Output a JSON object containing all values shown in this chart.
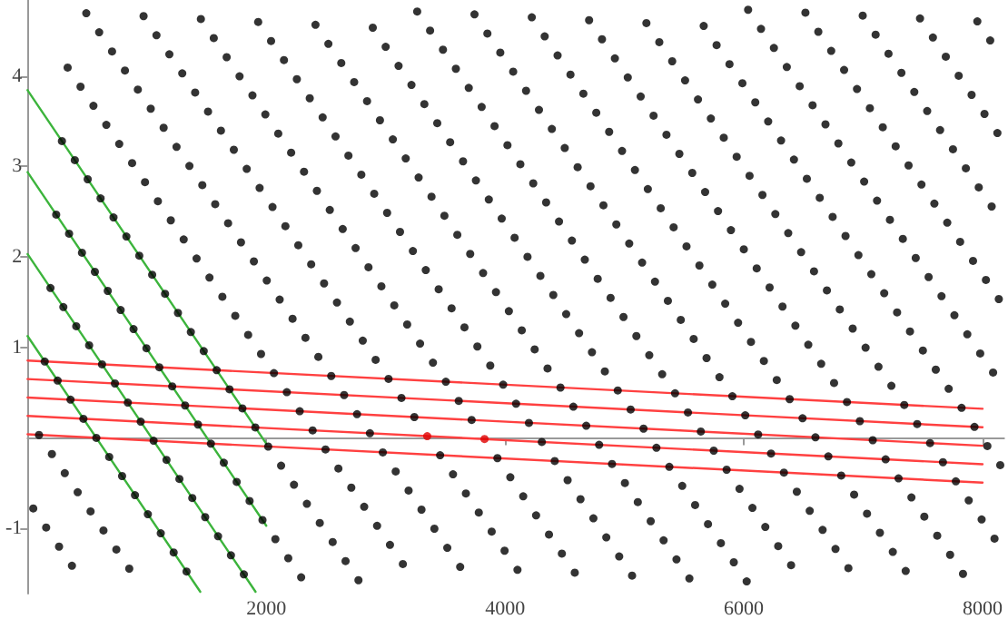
{
  "chart_data": {
    "type": "scatter",
    "xlim": [
      0,
      8180
    ],
    "ylim": [
      -1.72,
      4.84
    ],
    "xticks": [
      2000,
      4000,
      6000,
      8000
    ],
    "yticks": [
      -1,
      1,
      2,
      3,
      4
    ],
    "marker": "circle",
    "series": [
      {
        "type": "line",
        "marker": "none",
        "color": "#3cb43c",
        "x": [
          0,
          2000
        ],
        "values": [
          3.844,
          -0.064
        ]
      },
      {
        "type": "line",
        "marker": "none",
        "color": "#3cb43c",
        "x": [
          0,
          2000
        ],
        "values": [
          2.938,
          -0.97
        ]
      },
      {
        "type": "line",
        "marker": "none",
        "color": "#3cb43c",
        "x": [
          0,
          1910
        ],
        "values": [
          2.032,
          -1.7
        ]
      },
      {
        "type": "line",
        "marker": "none",
        "color": "#3cb43c",
        "x": [
          0,
          1447
        ],
        "values": [
          1.126,
          -1.7
        ]
      },
      {
        "type": "line",
        "marker": "none",
        "color": "#ff4040",
        "x": [
          0,
          8000
        ],
        "values": [
          0.855,
          0.322
        ]
      },
      {
        "type": "line",
        "marker": "none",
        "color": "#ff4040",
        "x": [
          0,
          8000
        ],
        "values": [
          0.651,
          0.118
        ]
      },
      {
        "type": "line",
        "marker": "none",
        "color": "#ff4040",
        "x": [
          0,
          8000
        ],
        "values": [
          0.447,
          -0.086
        ]
      },
      {
        "type": "line",
        "marker": "none",
        "color": "#ff4040",
        "x": [
          0,
          8000
        ],
        "values": [
          0.243,
          -0.29
        ]
      },
      {
        "type": "line",
        "marker": "none",
        "color": "#ff4040",
        "x": [
          0,
          8000
        ],
        "values": [
          0.04,
          -0.494
        ]
      },
      {
        "color": "#000000",
        "x": [
          6036,
          6516,
          6996,
          7476,
          7956
        ],
        "values": [
          4.732,
          4.7,
          4.668,
          4.636,
          4.604
        ]
      },
      {
        "color": "#000000",
        "x": [
          3264,
          3744,
          4224,
          4704,
          5184,
          5664,
          6144,
          6624,
          7104,
          7584,
          8064
        ],
        "values": [
          4.713,
          4.681,
          4.649,
          4.617,
          4.585,
          4.553,
          4.521,
          4.489,
          4.457,
          4.425,
          4.393
        ]
      },
      {
        "color": "#000000",
        "x": [
          492,
          972,
          1452,
          1932,
          2412,
          2892,
          3372,
          3852,
          4332,
          4812,
          5292,
          5772,
          6252,
          6732,
          7212,
          7692
        ],
        "values": [
          4.694,
          4.662,
          4.63,
          4.598,
          4.566,
          4.534,
          4.502,
          4.47,
          4.438,
          4.406,
          4.374,
          4.342,
          4.31,
          4.278,
          4.246,
          4.214
        ]
      },
      {
        "color": "#000000",
        "x": [
          600,
          1080,
          1560,
          2040,
          2520,
          3000,
          3480,
          3960,
          4440,
          4920,
          5400,
          5880,
          6360,
          6840,
          7320,
          7800
        ],
        "values": [
          4.483,
          4.451,
          4.419,
          4.387,
          4.355,
          4.323,
          4.291,
          4.259,
          4.227,
          4.195,
          4.163,
          4.131,
          4.099,
          4.067,
          4.035,
          4.003
        ]
      },
      {
        "color": "#000000",
        "x": [
          708,
          1188,
          1668,
          2148,
          2628,
          3108,
          3588,
          4068,
          4548,
          5028,
          5508,
          5988,
          6468,
          6948,
          7428,
          7908
        ],
        "values": [
          4.272,
          4.24,
          4.208,
          4.176,
          4.144,
          4.112,
          4.08,
          4.048,
          4.016,
          3.984,
          3.952,
          3.92,
          3.888,
          3.856,
          3.824,
          3.792
        ]
      },
      {
        "color": "#000000",
        "x": [
          336,
          816,
          1296,
          1776,
          2256,
          2736,
          3216,
          3696,
          4176,
          4656,
          5136,
          5616,
          6096,
          6576,
          7056,
          7536,
          8016
        ],
        "values": [
          4.093,
          4.061,
          4.029,
          3.997,
          3.965,
          3.933,
          3.901,
          3.869,
          3.837,
          3.805,
          3.773,
          3.741,
          3.709,
          3.677,
          3.645,
          3.613,
          3.581
        ]
      },
      {
        "color": "#000000",
        "x": [
          444,
          924,
          1404,
          1884,
          2364,
          2844,
          3324,
          3804,
          4284,
          4764,
          5244,
          5724,
          6204,
          6684,
          7164,
          7644,
          8124
        ],
        "values": [
          3.882,
          3.85,
          3.818,
          3.786,
          3.754,
          3.722,
          3.69,
          3.658,
          3.626,
          3.594,
          3.562,
          3.53,
          3.498,
          3.466,
          3.434,
          3.402,
          3.37
        ]
      },
      {
        "color": "#000000",
        "x": [
          552,
          1032,
          1512,
          1992,
          2472,
          2952,
          3432,
          3912,
          4392,
          4872,
          5352,
          5832,
          6312,
          6792,
          7272,
          7752
        ],
        "values": [
          3.671,
          3.639,
          3.607,
          3.575,
          3.543,
          3.511,
          3.479,
          3.447,
          3.415,
          3.383,
          3.351,
          3.319,
          3.287,
          3.255,
          3.223,
          3.191
        ]
      },
      {
        "color": "#000000",
        "x": [
          660,
          1140,
          1620,
          2100,
          2580,
          3060,
          3540,
          4020,
          4500,
          4980,
          5460,
          5940,
          6420,
          6900,
          7380,
          7860
        ],
        "values": [
          3.46,
          3.428,
          3.396,
          3.364,
          3.332,
          3.3,
          3.268,
          3.236,
          3.204,
          3.172,
          3.14,
          3.108,
          3.076,
          3.044,
          3.012,
          2.98
        ]
      },
      {
        "color": "#000000",
        "x": [
          288,
          768,
          1248,
          1728,
          2208,
          2688,
          3168,
          3648,
          4128,
          4608,
          5088,
          5568,
          6048,
          6528,
          7008,
          7488,
          7968
        ],
        "values": [
          3.281,
          3.249,
          3.217,
          3.185,
          3.153,
          3.121,
          3.089,
          3.057,
          3.025,
          2.993,
          2.961,
          2.929,
          2.897,
          2.865,
          2.833,
          2.801,
          2.769
        ]
      },
      {
        "color": "#000000",
        "x": [
          396,
          876,
          1356,
          1836,
          2316,
          2796,
          3276,
          3756,
          4236,
          4716,
          5196,
          5676,
          6156,
          6636,
          7116,
          7596,
          8076
        ],
        "values": [
          3.07,
          3.038,
          3.006,
          2.974,
          2.942,
          2.91,
          2.878,
          2.846,
          2.814,
          2.782,
          2.75,
          2.718,
          2.686,
          2.654,
          2.622,
          2.59,
          2.558
        ]
      },
      {
        "color": "#000000",
        "x": [
          504,
          984,
          1464,
          1944,
          2424,
          2904,
          3384,
          3864,
          4344,
          4824,
          5304,
          5784,
          6264,
          6744,
          7224,
          7704
        ],
        "values": [
          2.859,
          2.827,
          2.795,
          2.763,
          2.731,
          2.699,
          2.667,
          2.635,
          2.603,
          2.571,
          2.539,
          2.507,
          2.475,
          2.443,
          2.411,
          2.379
        ]
      },
      {
        "color": "#000000",
        "x": [
          612,
          1092,
          1572,
          2052,
          2532,
          3012,
          3492,
          3972,
          4452,
          4932,
          5412,
          5892,
          6372,
          6852,
          7332,
          7812
        ],
        "values": [
          2.648,
          2.616,
          2.584,
          2.552,
          2.52,
          2.488,
          2.456,
          2.424,
          2.392,
          2.36,
          2.328,
          2.296,
          2.264,
          2.232,
          2.2,
          2.168
        ]
      },
      {
        "color": "#000000",
        "x": [
          240,
          720,
          1200,
          1680,
          2160,
          2640,
          3120,
          3600,
          4080,
          4560,
          5040,
          5520,
          6000,
          6480,
          6960,
          7440,
          7920
        ],
        "values": [
          2.469,
          2.437,
          2.405,
          2.373,
          2.341,
          2.309,
          2.277,
          2.245,
          2.213,
          2.181,
          2.149,
          2.117,
          2.085,
          2.053,
          2.021,
          1.989,
          1.957
        ]
      },
      {
        "color": "#000000",
        "x": [
          348,
          828,
          1308,
          1788,
          2268,
          2748,
          3228,
          3708,
          4188,
          4668,
          5148,
          5628,
          6108,
          6588,
          7068,
          7548,
          8028
        ],
        "values": [
          2.258,
          2.226,
          2.194,
          2.162,
          2.13,
          2.098,
          2.066,
          2.034,
          2.002,
          1.97,
          1.938,
          1.906,
          1.874,
          1.842,
          1.81,
          1.778,
          1.746
        ]
      },
      {
        "color": "#000000",
        "x": [
          456,
          936,
          1416,
          1896,
          2376,
          2856,
          3336,
          3816,
          4296,
          4776,
          5256,
          5736,
          6216,
          6696,
          7176,
          7656,
          8136
        ],
        "values": [
          2.047,
          2.015,
          1.983,
          1.951,
          1.919,
          1.887,
          1.855,
          1.823,
          1.791,
          1.759,
          1.727,
          1.695,
          1.663,
          1.631,
          1.599,
          1.567,
          1.535
        ]
      },
      {
        "color": "#000000",
        "x": [
          564,
          1044,
          1524,
          2004,
          2484,
          2964,
          3444,
          3924,
          4404,
          4884,
          5364,
          5844,
          6324,
          6804,
          7284,
          7764
        ],
        "values": [
          1.836,
          1.804,
          1.772,
          1.74,
          1.708,
          1.676,
          1.644,
          1.612,
          1.58,
          1.548,
          1.516,
          1.484,
          1.452,
          1.42,
          1.388,
          1.356
        ]
      },
      {
        "color": "#000000",
        "x": [
          192,
          672,
          1152,
          1632,
          2112,
          2592,
          3072,
          3552,
          4032,
          4512,
          4992,
          5472,
          5952,
          6432,
          6912,
          7392,
          7872
        ],
        "values": [
          1.657,
          1.625,
          1.593,
          1.561,
          1.529,
          1.497,
          1.465,
          1.433,
          1.401,
          1.369,
          1.337,
          1.305,
          1.273,
          1.241,
          1.209,
          1.177,
          1.145
        ]
      },
      {
        "color": "#000000",
        "x": [
          300,
          780,
          1260,
          1740,
          2220,
          2700,
          3180,
          3660,
          4140,
          4620,
          5100,
          5580,
          6060,
          6540,
          7020,
          7500,
          7980
        ],
        "values": [
          1.446,
          1.414,
          1.382,
          1.35,
          1.318,
          1.286,
          1.254,
          1.222,
          1.19,
          1.158,
          1.126,
          1.094,
          1.062,
          1.03,
          0.998,
          0.966,
          0.934
        ]
      },
      {
        "color": "#000000",
        "x": [
          408,
          888,
          1368,
          1848,
          2328,
          2808,
          3288,
          3768,
          4248,
          4728,
          5208,
          5688,
          6168,
          6648,
          7128,
          7608,
          8088
        ],
        "values": [
          1.235,
          1.203,
          1.171,
          1.139,
          1.107,
          1.075,
          1.043,
          1.011,
          0.979,
          0.947,
          0.915,
          0.883,
          0.851,
          0.819,
          0.787,
          0.755,
          0.723
        ]
      },
      {
        "color": "#000000",
        "x": [
          516,
          996,
          1476,
          1956,
          2436,
          2916,
          3396,
          3876,
          4356,
          4836,
          5316,
          5796,
          6276,
          6756,
          7236,
          7716
        ],
        "values": [
          1.024,
          0.992,
          0.96,
          0.928,
          0.896,
          0.864,
          0.832,
          0.8,
          0.768,
          0.736,
          0.704,
          0.672,
          0.64,
          0.608,
          0.576,
          0.544
        ]
      },
      {
        "color": "#000000",
        "x": [
          144,
          624,
          1104,
          1584,
          2064,
          2544,
          3024,
          3504,
          3984,
          4464,
          4944,
          5424,
          5904,
          6384,
          6864,
          7344,
          7824
        ],
        "values": [
          0.845,
          0.813,
          0.781,
          0.749,
          0.717,
          0.685,
          0.653,
          0.621,
          0.589,
          0.557,
          0.525,
          0.493,
          0.461,
          0.429,
          0.397,
          0.365,
          0.333
        ]
      },
      {
        "color": "#000000",
        "x": [
          252,
          732,
          1212,
          1692,
          2172,
          2652,
          3132,
          3612,
          4092,
          4572,
          5052,
          5532,
          6012,
          6492,
          6972,
          7452,
          7932
        ],
        "values": [
          0.634,
          0.602,
          0.57,
          0.538,
          0.506,
          0.474,
          0.442,
          0.41,
          0.378,
          0.346,
          0.314,
          0.282,
          0.25,
          0.218,
          0.186,
          0.154,
          0.122
        ]
      },
      {
        "color": "#000000",
        "x": [
          360,
          840,
          1320,
          1800,
          2280,
          2760,
          3240,
          3720,
          4200,
          4680,
          5160,
          5640,
          6120,
          6600,
          7080,
          7560,
          8040
        ],
        "values": [
          0.423,
          0.391,
          0.359,
          0.327,
          0.295,
          0.263,
          0.231,
          0.199,
          0.167,
          0.135,
          0.103,
          0.071,
          0.039,
          0.007,
          -0.025,
          -0.057,
          -0.089
        ]
      },
      {
        "color": "#000000",
        "x": [
          468,
          948,
          1428,
          1908,
          2388,
          2868,
          3348,
          3828,
          4308,
          4788,
          5268,
          5748,
          6228,
          6708,
          7188,
          7668,
          8148
        ],
        "values": [
          0.212,
          0.18,
          0.148,
          0.116,
          0.084,
          0.052,
          null,
          null,
          -0.044,
          -0.076,
          -0.108,
          -0.14,
          -0.172,
          -0.204,
          -0.236,
          -0.268,
          -0.3
        ]
      },
      {
        "color": "#000000",
        "x": [
          96,
          576,
          1056,
          1536,
          2016,
          2496,
          2976,
          3456,
          3936,
          4416,
          4896,
          5376,
          5856,
          6336,
          6816,
          7296,
          7776
        ],
        "values": [
          0.033,
          0.001,
          -0.031,
          -0.063,
          -0.095,
          -0.127,
          -0.159,
          -0.191,
          -0.223,
          -0.255,
          -0.287,
          -0.319,
          -0.351,
          -0.383,
          -0.415,
          -0.447,
          -0.479
        ]
      },
      {
        "color": "#000000",
        "x": [
          204,
          684,
          1164,
          1644,
          2124,
          2604,
          3084,
          3564,
          4044,
          4524,
          5004,
          5484,
          5964,
          6444,
          6924,
          7404,
          7884
        ],
        "values": [
          -0.178,
          -0.21,
          -0.242,
          -0.274,
          -0.306,
          -0.338,
          -0.37,
          -0.402,
          -0.434,
          -0.466,
          -0.498,
          -0.53,
          -0.562,
          -0.594,
          -0.626,
          -0.658,
          -0.69
        ]
      },
      {
        "color": "#000000",
        "x": [
          312,
          792,
          1272,
          1752,
          2232,
          2712,
          3192,
          3672,
          4152,
          4632,
          5112,
          5592,
          6072,
          6552,
          7032,
          7512,
          7992
        ],
        "values": [
          -0.389,
          -0.421,
          -0.453,
          -0.485,
          -0.517,
          -0.549,
          -0.581,
          -0.613,
          -0.645,
          -0.677,
          -0.709,
          -0.741,
          -0.773,
          -0.805,
          -0.837,
          -0.869,
          -0.901
        ]
      },
      {
        "color": "#000000",
        "x": [
          420,
          900,
          1380,
          1860,
          2340,
          2820,
          3300,
          3780,
          4260,
          4740,
          5220,
          5700,
          6180,
          6660,
          7140,
          7620,
          8100
        ],
        "values": [
          -0.6,
          -0.632,
          -0.664,
          -0.696,
          -0.728,
          -0.76,
          -0.792,
          -0.824,
          -0.856,
          -0.888,
          -0.92,
          -0.952,
          -0.984,
          -1.016,
          -1.048,
          -1.08,
          -1.112
        ]
      },
      {
        "color": "#000000",
        "x": [
          48,
          528,
          1008,
          1488,
          1968,
          2448,
          2928,
          3408,
          3888,
          4368,
          4848,
          5328,
          5808,
          6288,
          6768,
          7248,
          7728
        ],
        "values": [
          -0.779,
          -0.811,
          -0.843,
          -0.875,
          -0.907,
          -0.939,
          -0.971,
          -1.003,
          -1.035,
          -1.067,
          -1.099,
          -1.131,
          -1.163,
          -1.195,
          -1.227,
          -1.259,
          -1.291
        ]
      },
      {
        "color": "#000000",
        "x": [
          156,
          636,
          1116,
          1596,
          2076,
          2556,
          3036,
          3516,
          3996,
          4476,
          4956,
          5436,
          5916,
          6396,
          6876,
          7356,
          7836
        ],
        "values": [
          -0.99,
          -1.022,
          -1.054,
          -1.086,
          -1.118,
          -1.15,
          -1.182,
          -1.214,
          -1.246,
          -1.278,
          -1.31,
          -1.342,
          -1.374,
          -1.406,
          -1.438,
          -1.47,
          -1.502
        ]
      },
      {
        "color": "#000000",
        "x": [
          264,
          744,
          1224,
          1704,
          2184,
          2664,
          3144,
          3624,
          4104,
          4584,
          5064,
          5544,
          6024
        ],
        "values": [
          -1.201,
          -1.233,
          -1.265,
          -1.297,
          -1.329,
          -1.361,
          -1.393,
          -1.425,
          -1.457,
          -1.489,
          -1.521,
          -1.553,
          -1.585
        ]
      },
      {
        "color": "#000000",
        "x": [
          372,
          852,
          1332,
          1812,
          2292,
          2772
        ],
        "values": [
          -1.412,
          -1.444,
          -1.476,
          -1.508,
          -1.54,
          -1.572
        ]
      },
      {
        "color": "#e00000",
        "x": [
          3348,
          3828
        ],
        "values": [
          0.02,
          -0.012
        ]
      }
    ]
  }
}
